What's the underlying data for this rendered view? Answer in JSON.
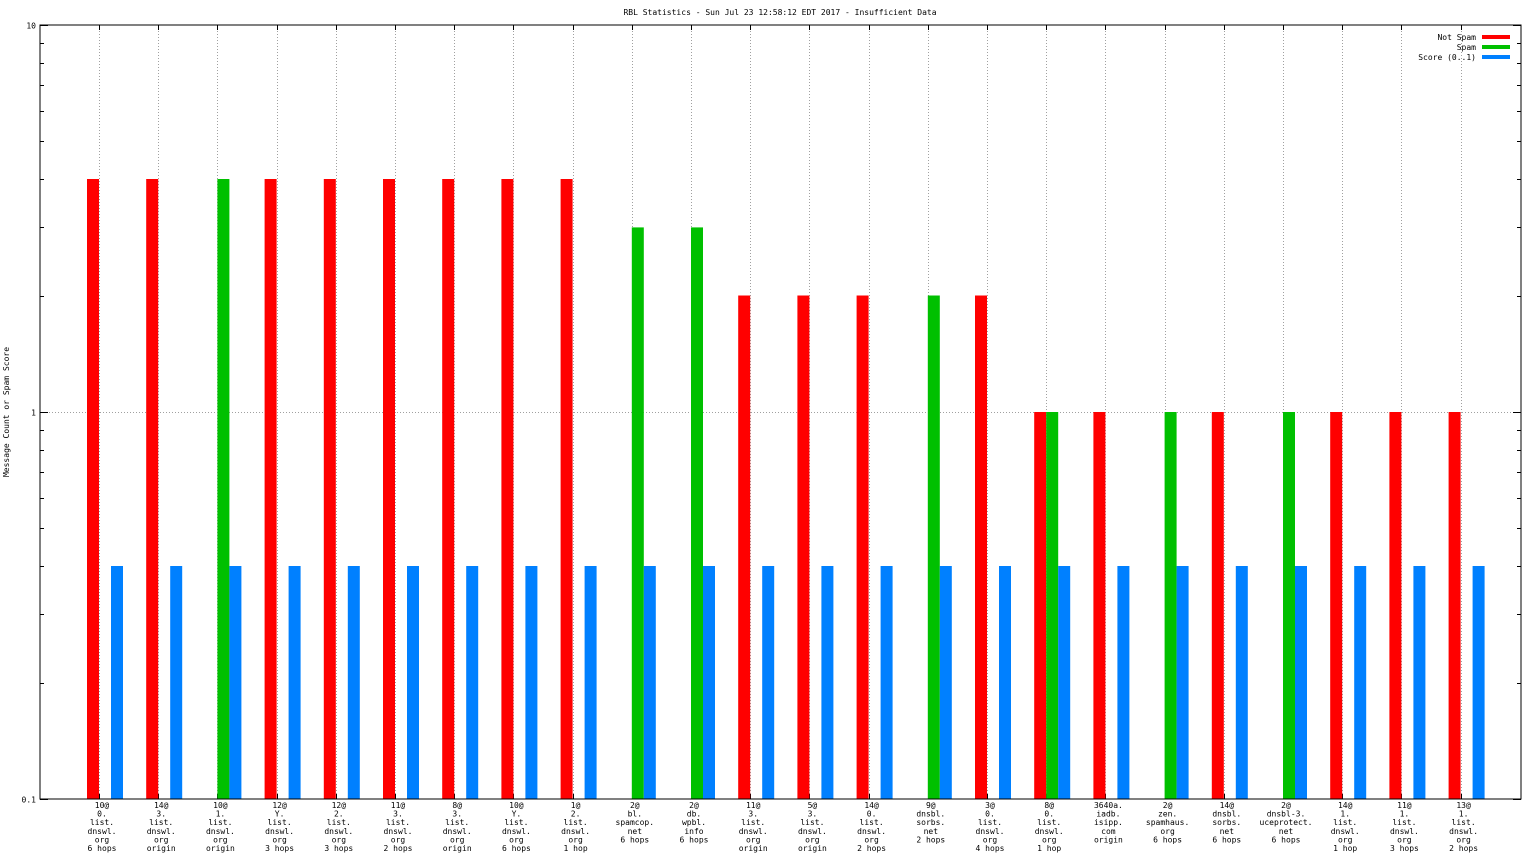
{
  "chart_data": {
    "type": "bar",
    "title": "RBL Statistics - Sun Jul 23 12:58:12 EDT 2017 - Insufficient Data",
    "ylabel": "Message Count or Spam Score",
    "xlabel": "",
    "yscale": "log",
    "ylim": [
      0.1,
      10
    ],
    "yticks": [
      {
        "value": 10,
        "label": "10"
      },
      {
        "value": 1,
        "label": "1"
      },
      {
        "value": 0.1,
        "label": "0.1"
      }
    ],
    "grid": true,
    "legend_position": "top-right",
    "categories": [
      [
        "10@",
        "0.",
        "list.",
        "dnswl.",
        "org",
        "6 hops"
      ],
      [
        "14@",
        "3.",
        "list.",
        "dnswl.",
        "org",
        "origin"
      ],
      [
        "10@",
        "1.",
        "list.",
        "dnswl.",
        "org",
        "origin"
      ],
      [
        "12@",
        "Y.",
        "list.",
        "dnswl.",
        "org",
        "3 hops"
      ],
      [
        "12@",
        "2.",
        "list.",
        "dnswl.",
        "org",
        "3 hops"
      ],
      [
        "11@",
        "3.",
        "list.",
        "dnswl.",
        "org",
        "2 hops"
      ],
      [
        "8@",
        "3.",
        "list.",
        "dnswl.",
        "org",
        "origin"
      ],
      [
        "10@",
        "Y.",
        "list.",
        "dnswl.",
        "org",
        "6 hops"
      ],
      [
        "1@",
        "2.",
        "list.",
        "dnswl.",
        "org",
        "1 hop"
      ],
      [
        "2@",
        "bl.",
        "spamcop.",
        "net",
        "6 hops"
      ],
      [
        "2@",
        "db.",
        "wpbl.",
        "info",
        "6 hops"
      ],
      [
        "11@",
        "3.",
        "list.",
        "dnswl.",
        "org",
        "origin"
      ],
      [
        "5@",
        "3.",
        "list.",
        "dnswl.",
        "org",
        "origin"
      ],
      [
        "14@",
        "0.",
        "list.",
        "dnswl.",
        "org",
        "2 hops"
      ],
      [
        "9@",
        "dnsbl.",
        "sorbs.",
        "net",
        "2 hops"
      ],
      [
        "3@",
        "0.",
        "list.",
        "dnswl.",
        "org",
        "4 hops"
      ],
      [
        "8@",
        "0.",
        "list.",
        "dnswl.",
        "org",
        "1 hop"
      ],
      [
        "3640a.",
        "iadb.",
        "isipp.",
        "com",
        "origin"
      ],
      [
        "2@",
        "zen.",
        "spamhaus.",
        "org",
        "6 hops"
      ],
      [
        "14@",
        "dnsbl.",
        "sorbs.",
        "net",
        "6 hops"
      ],
      [
        "2@",
        "dnsbl-3.",
        "uceprotect.",
        "net",
        "6 hops"
      ],
      [
        "14@",
        "1.",
        "list.",
        "dnswl.",
        "org",
        "1 hop"
      ],
      [
        "11@",
        "1.",
        "list.",
        "dnswl.",
        "org",
        "3 hops"
      ],
      [
        "13@",
        "1.",
        "list.",
        "dnswl.",
        "org",
        "2 hops"
      ]
    ],
    "series": [
      {
        "name": "Not Spam",
        "color": "#ff0000",
        "values": [
          4,
          4,
          0,
          4,
          4,
          4,
          4,
          4,
          4,
          0,
          0,
          2,
          2,
          2,
          0,
          2,
          1,
          1,
          0,
          1,
          0,
          1,
          1,
          1
        ]
      },
      {
        "name": "Spam",
        "color": "#00c000",
        "values": [
          0,
          0,
          4,
          0,
          0,
          0,
          0,
          0,
          0,
          3,
          3,
          0,
          0,
          0,
          2,
          0,
          1,
          0,
          1,
          0,
          1,
          0,
          0,
          0
        ]
      },
      {
        "name": "Score (0..1)",
        "color": "#0080ff",
        "values": [
          0.4,
          0.4,
          0.4,
          0.4,
          0.4,
          0.4,
          0.4,
          0.4,
          0.4,
          0.4,
          0.4,
          0.4,
          0.4,
          0.4,
          0.4,
          0.4,
          0.4,
          0.4,
          0.4,
          0.4,
          0.4,
          0.4,
          0.4,
          0.4
        ]
      }
    ]
  }
}
